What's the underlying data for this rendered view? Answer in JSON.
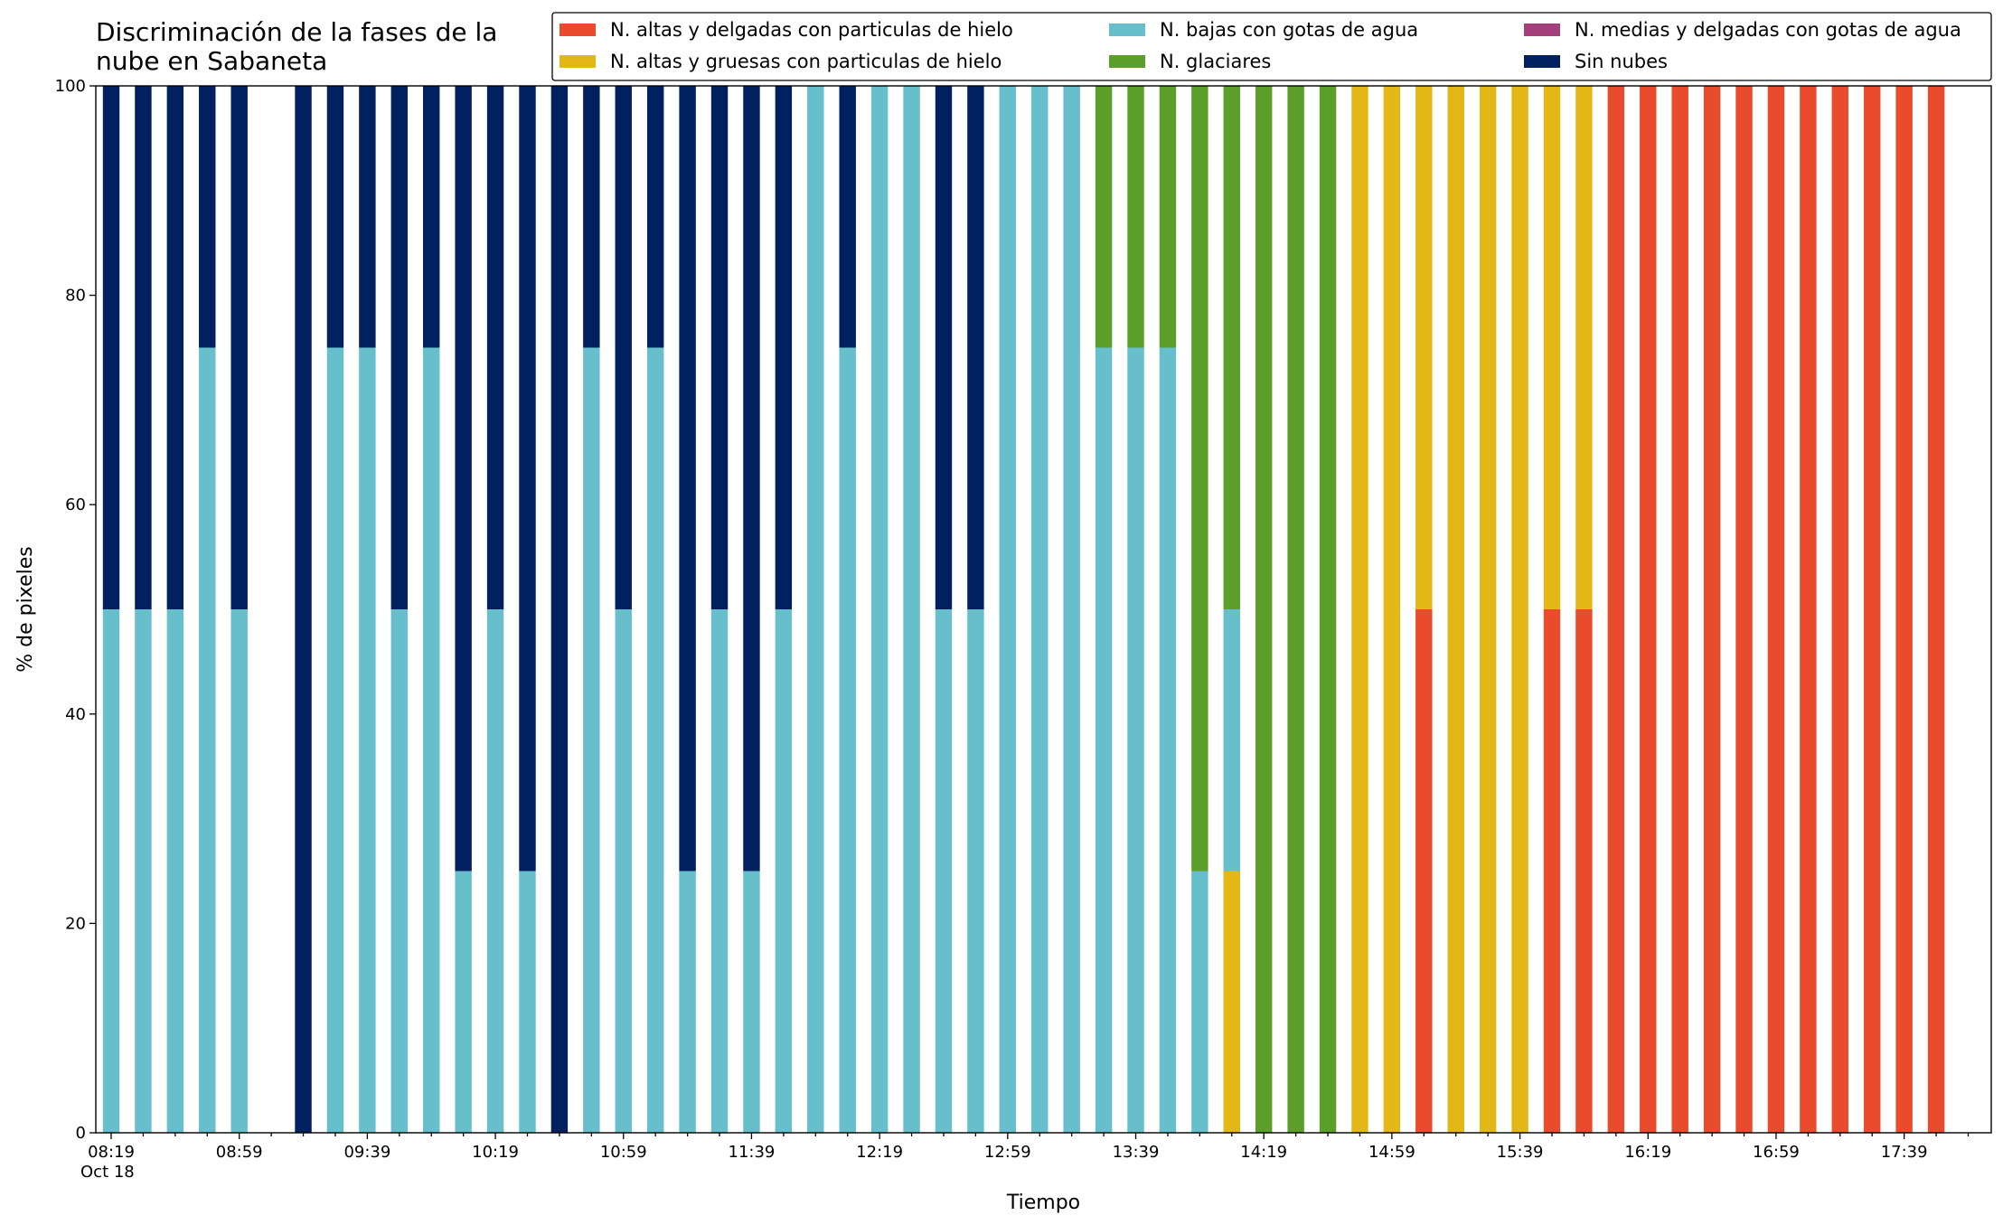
{
  "chart_data": {
    "type": "stacked_bar",
    "title": "Discriminación de la fases de la\nnube en Sabaneta",
    "xlabel": "Tiempo",
    "ylabel": "% de pixeles",
    "x_sublabel": "Oct 18",
    "categories": [
      "08:19",
      null,
      null,
      null,
      "08:59",
      null,
      null,
      null,
      "09:39",
      null,
      null,
      null,
      "10:19",
      null,
      null,
      null,
      "10:59",
      null,
      null,
      null,
      "11:39",
      null,
      null,
      null,
      "12:19",
      null,
      null,
      null,
      "12:59",
      null,
      null,
      null,
      "13:39",
      null,
      null,
      null,
      "14:19",
      null,
      null,
      null,
      "14:59",
      null,
      null,
      null,
      "15:39",
      null,
      null,
      null,
      "16:19",
      null,
      null,
      null,
      "16:59",
      null,
      null,
      null,
      "17:39",
      null,
      null
    ],
    "series": [
      {
        "name": "N. altas y delgadas con particulas de hielo",
        "color": "#e94b2c",
        "values": [
          0,
          0,
          0,
          0,
          0,
          0,
          0,
          0,
          0,
          0,
          0,
          0,
          0,
          0,
          0,
          0,
          0,
          0,
          0,
          0,
          0,
          0,
          0,
          0,
          0,
          0,
          0,
          0,
          0,
          0,
          0,
          0,
          0,
          0,
          0,
          0,
          0,
          0,
          0,
          0,
          0,
          50,
          0,
          0,
          0,
          50,
          50,
          100,
          100,
          100,
          100,
          100,
          100,
          100,
          100,
          100,
          100,
          100,
          0
        ]
      },
      {
        "name": "N. altas y gruesas con particulas de hielo",
        "color": "#e3b715",
        "values": [
          0,
          0,
          0,
          0,
          0,
          0,
          0,
          0,
          0,
          0,
          0,
          0,
          0,
          0,
          0,
          0,
          0,
          0,
          0,
          0,
          0,
          0,
          0,
          0,
          0,
          0,
          0,
          0,
          0,
          0,
          0,
          0,
          0,
          0,
          0,
          25,
          0,
          0,
          0,
          100,
          100,
          50,
          100,
          100,
          100,
          50,
          50,
          0,
          0,
          0,
          0,
          0,
          0,
          0,
          0,
          0,
          0,
          0,
          0
        ]
      },
      {
        "name": "N. bajas con gotas de agua",
        "color": "#66bfca",
        "values": [
          50,
          50,
          50,
          75,
          50,
          0,
          0,
          75,
          75,
          50,
          75,
          25,
          50,
          25,
          0,
          75,
          50,
          75,
          25,
          50,
          25,
          50,
          100,
          75,
          100,
          100,
          50,
          50,
          100,
          100,
          100,
          75,
          75,
          75,
          25,
          25,
          0,
          0,
          0,
          0,
          0,
          0,
          0,
          0,
          0,
          0,
          0,
          0,
          0,
          0,
          0,
          0,
          0,
          0,
          0,
          0,
          0,
          0,
          0
        ]
      },
      {
        "name": "N. glaciares",
        "color": "#5b9e2a",
        "values": [
          0,
          0,
          0,
          0,
          0,
          0,
          0,
          0,
          0,
          0,
          0,
          0,
          0,
          0,
          0,
          0,
          0,
          0,
          0,
          0,
          0,
          0,
          0,
          0,
          0,
          0,
          0,
          0,
          0,
          0,
          0,
          25,
          25,
          25,
          75,
          50,
          100,
          100,
          100,
          0,
          0,
          0,
          0,
          0,
          0,
          0,
          0,
          0,
          0,
          0,
          0,
          0,
          0,
          0,
          0,
          0,
          0,
          0,
          0
        ]
      },
      {
        "name": "N. medias y delgadas con gotas de agua",
        "color": "#a33f7a",
        "values": [
          0,
          0,
          0,
          0,
          0,
          0,
          0,
          0,
          0,
          0,
          0,
          0,
          0,
          0,
          0,
          0,
          0,
          0,
          0,
          0,
          0,
          0,
          0,
          0,
          0,
          0,
          0,
          0,
          0,
          0,
          0,
          0,
          0,
          0,
          0,
          0,
          0,
          0,
          0,
          0,
          0,
          0,
          0,
          0,
          0,
          0,
          0,
          0,
          0,
          0,
          0,
          0,
          0,
          0,
          0,
          0,
          0,
          0,
          0
        ]
      },
      {
        "name": "Sin nubes",
        "color": "#002060",
        "values": [
          50,
          50,
          50,
          25,
          50,
          0,
          100,
          25,
          25,
          50,
          25,
          75,
          50,
          75,
          100,
          25,
          50,
          25,
          75,
          50,
          75,
          50,
          0,
          25,
          0,
          0,
          50,
          50,
          0,
          0,
          0,
          0,
          0,
          0,
          0,
          0,
          0,
          0,
          0,
          0,
          0,
          0,
          0,
          0,
          0,
          0,
          0,
          0,
          0,
          0,
          0,
          0,
          0,
          0,
          0,
          0,
          0,
          0,
          0
        ]
      }
    ],
    "ylim": [
      0,
      100
    ],
    "yticks": [
      0,
      20,
      40,
      60,
      80,
      100
    ]
  }
}
